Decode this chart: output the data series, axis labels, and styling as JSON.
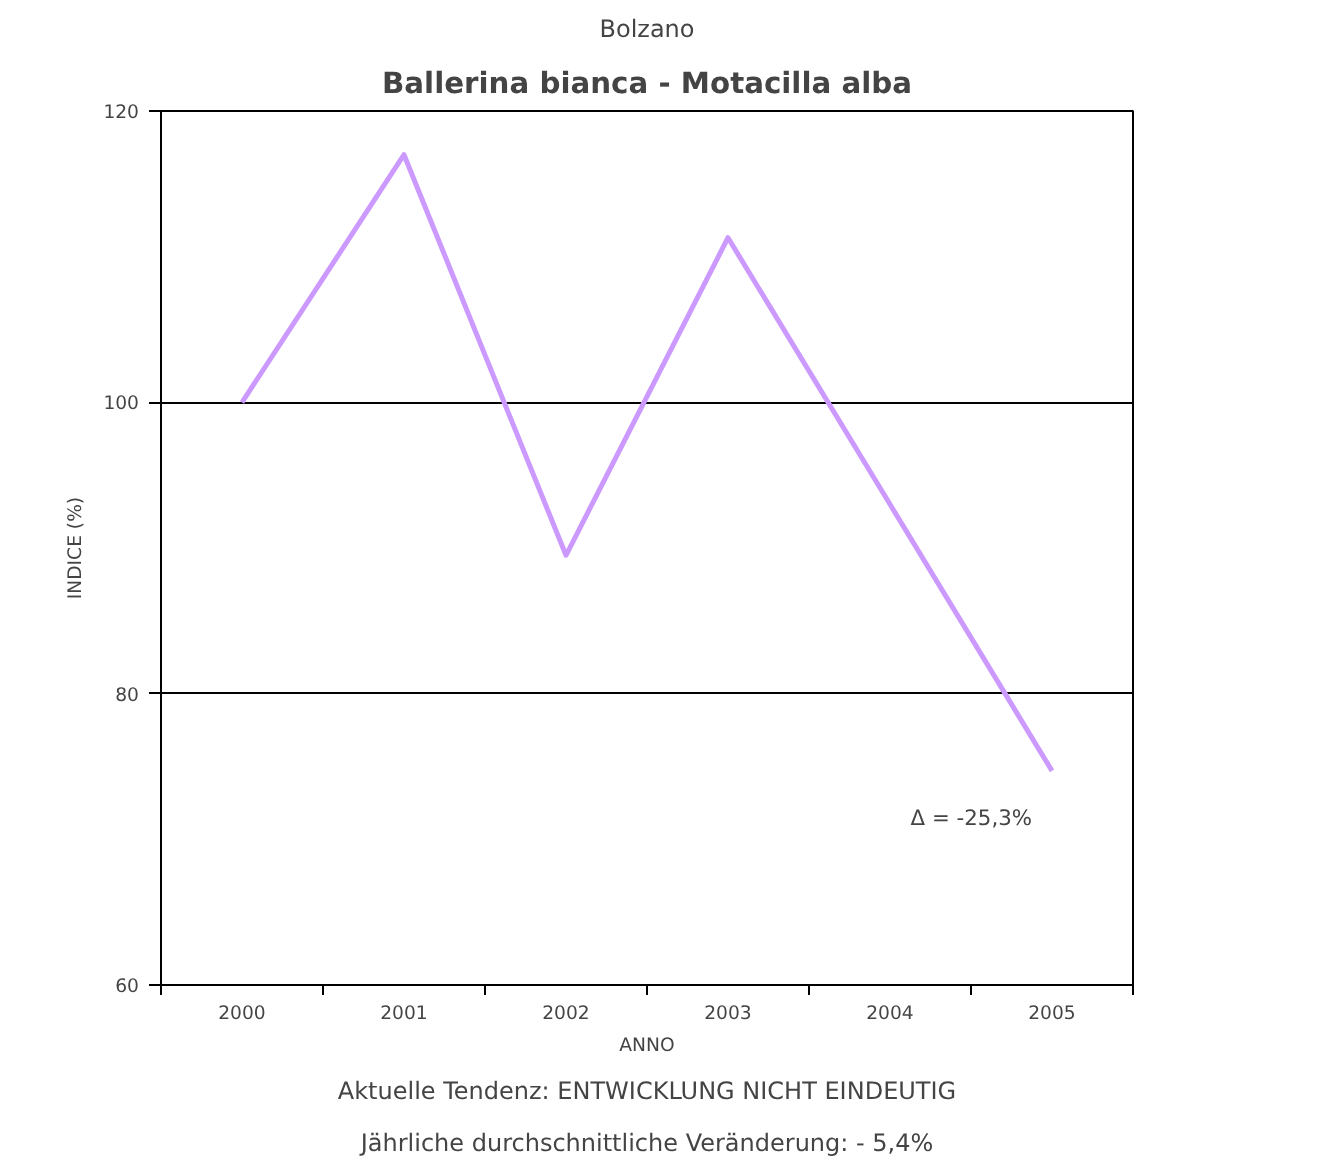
{
  "chart_data": {
    "type": "line",
    "subtitle": "Bolzano",
    "title": "Ballerina bianca - Motacilla alba",
    "xlabel": "ANNO",
    "ylabel": "INDICE (%)",
    "categories": [
      "2000",
      "2001",
      "2002",
      "2003",
      "2004",
      "2005"
    ],
    "series": [
      {
        "color": "#cc99ff",
        "values": [
          100,
          117,
          89.5,
          111.3,
          93,
          74.7
        ]
      }
    ],
    "ylim": [
      60,
      120
    ],
    "yticks": [
      60,
      80,
      100,
      120
    ],
    "grid": "y",
    "marker": "none",
    "line_style": "solid",
    "annotations": [
      {
        "text": "Δ = -25,3%",
        "x": "2005",
        "y": 74.7
      },
      "Aktuelle Tendenz: ENTWICKLUNG NICHT EINDEUTIG",
      "Jährliche durchschnittliche Veränderung: - 5,4%"
    ]
  }
}
